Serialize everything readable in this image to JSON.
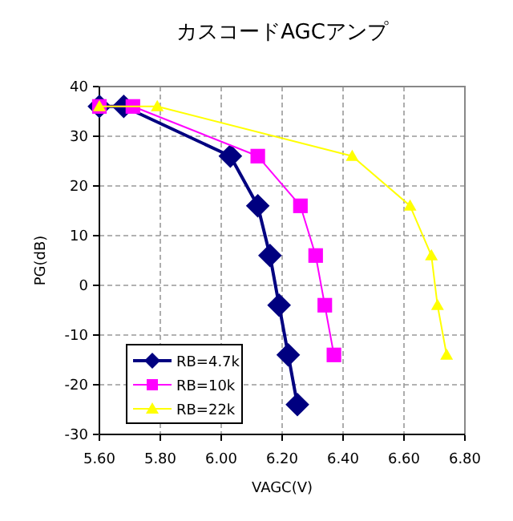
{
  "chart_data": {
    "type": "line",
    "title": "カスコードAGCアンプ",
    "xlabel": "VAGC(V)",
    "ylabel": "PG(dB)",
    "xlim": [
      5.6,
      6.8
    ],
    "xticks": [
      {
        "value": 5.6,
        "label": "5.60"
      },
      {
        "value": 5.8,
        "label": "5.80"
      },
      {
        "value": 6.0,
        "label": "6.00"
      },
      {
        "value": 6.2,
        "label": "6.20"
      },
      {
        "value": 6.4,
        "label": "6.40"
      },
      {
        "value": 6.6,
        "label": "6.60"
      },
      {
        "value": 6.8,
        "label": "6.80"
      }
    ],
    "ylim": [
      -30,
      40
    ],
    "yticks": [
      -30,
      -20,
      -10,
      0,
      10,
      20,
      30,
      40
    ],
    "grid": true,
    "legend": "bottom left",
    "series": [
      {
        "name": "RB=4.7k",
        "color": "#000080",
        "marker": "diamond",
        "x": [
          5.6,
          5.68,
          6.03,
          6.12,
          6.16,
          6.19,
          6.22,
          6.25
        ],
        "values": [
          36,
          36,
          26,
          16,
          6,
          -4,
          -14,
          -24
        ]
      },
      {
        "name": "RB=10k",
        "color": "#ff00ff",
        "marker": "square",
        "x": [
          5.6,
          5.71,
          6.12,
          6.26,
          6.31,
          6.34,
          6.37
        ],
        "values": [
          36,
          36,
          26,
          16,
          6,
          -4,
          -14
        ]
      },
      {
        "name": "RB=22k",
        "color": "#ffff00",
        "marker": "triangle",
        "x": [
          5.6,
          5.79,
          6.43,
          6.62,
          6.69,
          6.71,
          6.74
        ],
        "values": [
          36,
          36,
          26,
          16,
          6,
          -4,
          -14
        ]
      }
    ]
  }
}
